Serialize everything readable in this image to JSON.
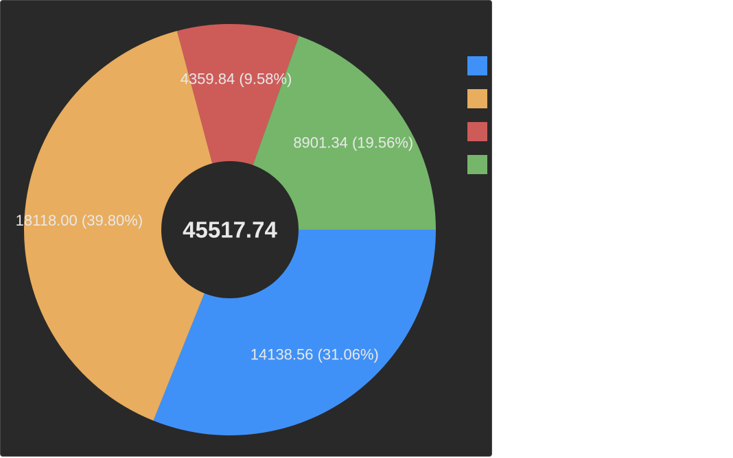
{
  "chart_data": {
    "type": "pie",
    "variant": "donut",
    "total": "45517.74",
    "slices": [
      {
        "value": 14138.56,
        "label": "14138.56 (31.06%)",
        "color": "#3f91f7"
      },
      {
        "value": 18118.0,
        "label": "18118.00 (39.80%)",
        "color": "#e8ad5e"
      },
      {
        "value": 4359.84,
        "label": "4359.84 (9.58%)",
        "color": "#cd5c59"
      },
      {
        "value": 8901.34,
        "label": "8901.34 (19.56%)",
        "color": "#75b66a"
      }
    ],
    "legend_position": "right"
  }
}
